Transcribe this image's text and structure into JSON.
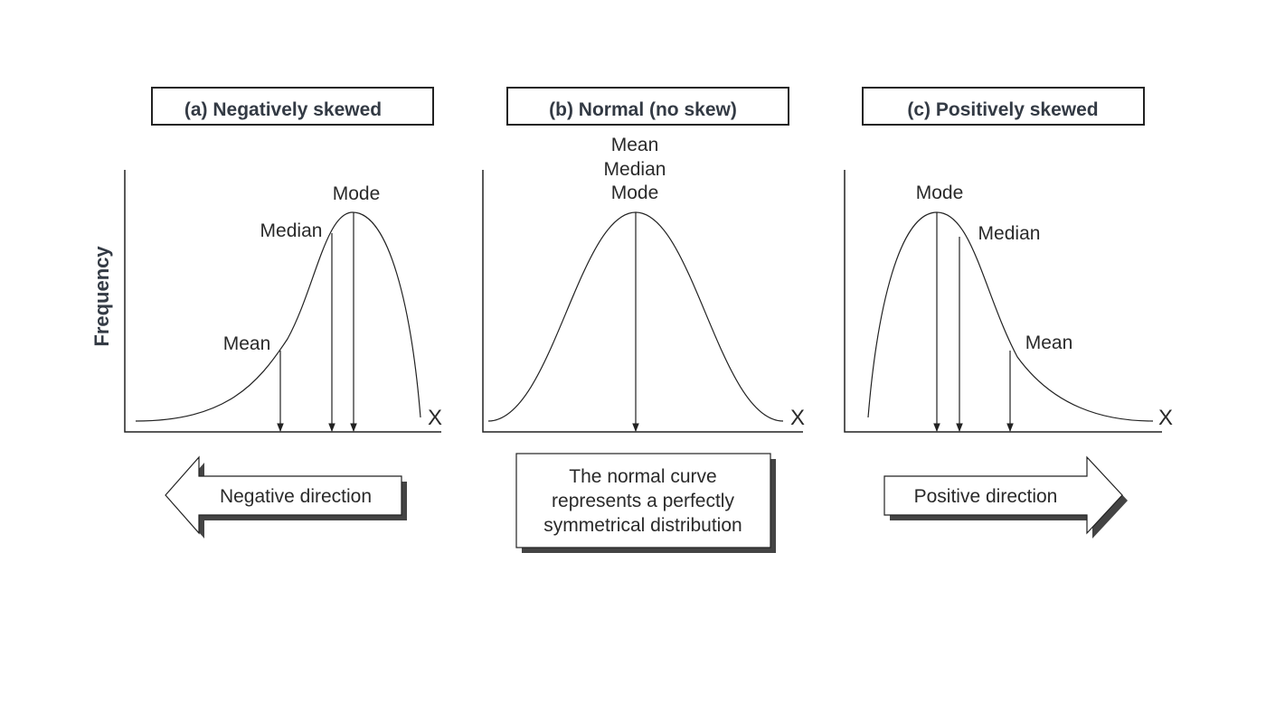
{
  "y_axis_label": "Frequency",
  "panels": [
    {
      "title": "(a) Negatively skewed",
      "x_label": "X",
      "markers": [
        "Mode",
        "Median",
        "Mean"
      ],
      "caption": [
        "Negative direction"
      ]
    },
    {
      "title": "(b) Normal (no skew)",
      "x_label": "X",
      "markers": [
        "Mean",
        "Median",
        "Mode"
      ],
      "caption": [
        "The normal curve",
        "represents a perfectly",
        "symmetrical distribution"
      ]
    },
    {
      "title": "(c) Positively skewed",
      "x_label": "X",
      "markers": [
        "Mode",
        "Median",
        "Mean"
      ],
      "caption": [
        "Positive direction"
      ]
    }
  ]
}
